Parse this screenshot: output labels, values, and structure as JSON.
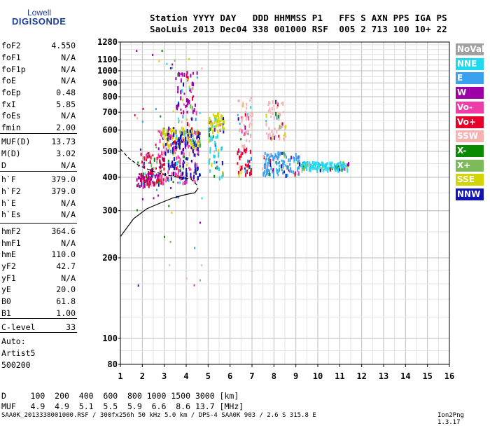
{
  "logo": {
    "top": "Lowell",
    "bottom": "DIGISONDE"
  },
  "header": {
    "line1": "Station YYYY DAY   DDD HHMMSS P1   FFS S AXN PPS IGA PS",
    "line2": "SaoLuis 2013 Dec04 338 001000 RSF  005 2 713 100 10+ 22"
  },
  "params": [
    {
      "name": "foF2",
      "value": "4.550"
    },
    {
      "name": "foF1",
      "value": "N/A"
    },
    {
      "name": "foF1p",
      "value": "N/A"
    },
    {
      "name": "foE",
      "value": "N/A"
    },
    {
      "name": "foEp",
      "value": "0.48"
    },
    {
      "name": "fxI",
      "value": "5.85"
    },
    {
      "name": "foEs",
      "value": "N/A"
    },
    {
      "name": "fmin",
      "value": "2.00"
    },
    {
      "name": "MUF(D)",
      "value": "13.73"
    },
    {
      "name": "M(D)",
      "value": "3.02"
    },
    {
      "name": "D",
      "value": "N/A"
    },
    {
      "name": "h`F",
      "value": "379.0"
    },
    {
      "name": "h`F2",
      "value": "379.0"
    },
    {
      "name": "h`E",
      "value": "N/A"
    },
    {
      "name": "h`Es",
      "value": "N/A"
    },
    {
      "name": "hmF2",
      "value": "364.6"
    },
    {
      "name": "hmF1",
      "value": "N/A"
    },
    {
      "name": "hmE",
      "value": "110.0"
    },
    {
      "name": "yF2",
      "value": "42.7"
    },
    {
      "name": "yF1",
      "value": "N/A"
    },
    {
      "name": "yE",
      "value": "20.0"
    },
    {
      "name": "B0",
      "value": "61.8"
    },
    {
      "name": "B1",
      "value": "1.00"
    },
    {
      "name": "C-level",
      "value": "33"
    }
  ],
  "auto": {
    "line1": "Auto:",
    "line2": "Artist5",
    "line3": "500200"
  },
  "legend": [
    {
      "label": "NoVal",
      "color": "#a0a0a0"
    },
    {
      "label": "NNE",
      "color": "#1ed9f0"
    },
    {
      "label": "E",
      "color": "#3aa0f0"
    },
    {
      "label": "W",
      "color": "#9e00a8"
    },
    {
      "label": "Vo-",
      "color": "#f03ca8"
    },
    {
      "label": "Vo+",
      "color": "#e8002a"
    },
    {
      "label": "SSW",
      "color": "#f5b2b0"
    },
    {
      "label": "X-",
      "color": "#0a8a00"
    },
    {
      "label": "X+",
      "color": "#7fba5a"
    },
    {
      "label": "SSE",
      "color": "#d4d400"
    },
    {
      "label": "NNW",
      "color": "#1414b4"
    }
  ],
  "muf_table": {
    "line1": "D     100  200  400  600  800 1000 1500 3000 [km]",
    "line2": "MUF   4.9  4.9  5.1  5.5  5.9  6.6  8.6 13.7 [MHz]"
  },
  "footer": {
    "left": "SAA0K_2013338001000.RSF / 300fx256h 50 kHz 5.0 km / DPS-4 SAA0K 903 / 2.6 S 315.8 E",
    "right": "Ion2Png 1.3.17"
  },
  "chart_data": {
    "type": "scatter",
    "title": "",
    "xlabel": "",
    "ylabel": "",
    "xlim": [
      1,
      16
    ],
    "ylim": [
      80,
      1280
    ],
    "x_ticks": [
      1,
      2,
      3,
      4,
      5,
      6,
      7,
      8,
      9,
      10,
      11,
      12,
      13,
      14,
      15,
      16
    ],
    "y_scale": "log",
    "y_ticks": [
      80,
      100,
      200,
      300,
      400,
      500,
      600,
      700,
      800,
      900,
      1000,
      1100,
      1280
    ],
    "grid": true,
    "echo_clusters": [
      {
        "x_range": [
          1.7,
          2.7
        ],
        "y_range": [
          370,
          420
        ],
        "color": "#9e00a8"
      },
      {
        "x_range": [
          1.9,
          3.0
        ],
        "y_range": [
          380,
          500
        ],
        "color": "#e8002a"
      },
      {
        "x_range": [
          2.7,
          4.6
        ],
        "y_range": [
          380,
          620
        ],
        "color": "#f03ca8"
      },
      {
        "x_range": [
          2.9,
          4.6
        ],
        "y_range": [
          520,
          620
        ],
        "color": "#d4d400"
      },
      {
        "x_range": [
          3.0,
          4.6
        ],
        "y_range": [
          400,
          620
        ],
        "color": "#1414b4"
      },
      {
        "x_range": [
          3.5,
          4.5
        ],
        "y_range": [
          620,
          1000
        ],
        "color": "#9e00a8"
      },
      {
        "x_range": [
          5.0,
          5.7
        ],
        "y_range": [
          400,
          680
        ],
        "color": "#1ed9f0"
      },
      {
        "x_range": [
          5.0,
          5.7
        ],
        "y_range": [
          600,
          700
        ],
        "color": "#d4d400"
      },
      {
        "x_range": [
          6.3,
          7.0
        ],
        "y_range": [
          410,
          520
        ],
        "color": "#e8002a"
      },
      {
        "x_range": [
          6.3,
          7.0
        ],
        "y_range": [
          520,
          800
        ],
        "color": "#f5b2b0"
      },
      {
        "x_range": [
          7.4,
          9.2
        ],
        "y_range": [
          410,
          500
        ],
        "color": "#3aa0f0"
      },
      {
        "x_range": [
          7.6,
          8.5
        ],
        "y_range": [
          560,
          780
        ],
        "color": "#f5b2b0"
      },
      {
        "x_range": [
          9.2,
          11.4
        ],
        "y_range": [
          430,
          460
        ],
        "color": "#1ed9f0"
      }
    ],
    "profile_curve": [
      [
        1.0,
        240
      ],
      [
        1.6,
        280
      ],
      [
        2.2,
        305
      ],
      [
        2.8,
        320
      ],
      [
        3.4,
        335
      ],
      [
        4.0,
        345
      ],
      [
        4.4,
        350
      ],
      [
        4.55,
        365
      ]
    ],
    "profile_dashed": [
      [
        1.0,
        510
      ],
      [
        1.4,
        470
      ],
      [
        1.8,
        445
      ],
      [
        2.2,
        430
      ],
      [
        2.6,
        418
      ],
      [
        3.0,
        410
      ],
      [
        3.6,
        400
      ],
      [
        4.2,
        395
      ],
      [
        4.55,
        370
      ]
    ]
  }
}
